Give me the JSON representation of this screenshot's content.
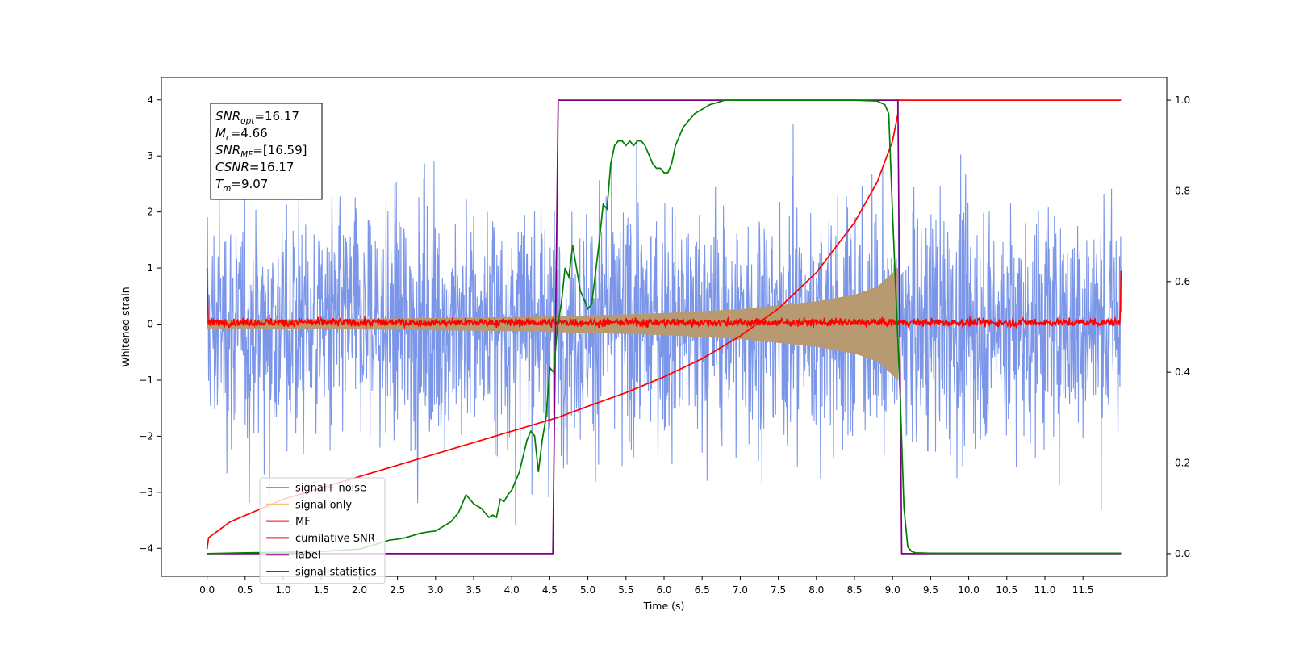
{
  "chart_data": {
    "type": "line",
    "xlabel": "Time (s)",
    "ylabel": "Whitened strain",
    "xlim": [
      -0.6,
      12.6
    ],
    "ylim": [
      -4.5,
      4.4
    ],
    "ylim_right": [
      -0.05,
      1.05
    ],
    "x_ticks": [
      "0.0",
      "0.5",
      "1.0",
      "1.5",
      "2.0",
      "2.5",
      "3.0",
      "3.5",
      "4.0",
      "4.5",
      "5.0",
      "5.5",
      "6.0",
      "6.5",
      "7.0",
      "7.5",
      "8.0",
      "8.5",
      "9.0",
      "9.5",
      "10.0",
      "10.5",
      "11.0",
      "11.5"
    ],
    "y_ticks": [
      "4",
      "3",
      "2",
      "1",
      "0",
      "−1",
      "−2",
      "−3",
      "−4"
    ],
    "y_ticks_right": [
      "1.0",
      "0.8",
      "0.6",
      "0.4",
      "0.2",
      "0.0"
    ],
    "grid": false,
    "legend_position": "lower-left",
    "info_box": [
      {
        "main": "SNR",
        "sub": "opt",
        "value": "=16.17"
      },
      {
        "main": "M",
        "sub": "c",
        "value": "=4.66"
      },
      {
        "main": "SNR",
        "sub": "MF",
        "value": "=[16.59]"
      },
      {
        "main": "CSNR",
        "sub": "",
        "value": "=16.17"
      },
      {
        "main": "T",
        "sub": "m",
        "value": "=9.07"
      }
    ],
    "series": [
      {
        "name": "signal+ noise",
        "color": "#7b96e9",
        "axis": "left",
        "kind": "noise-band",
        "x_range": [
          0.0,
          12.0
        ],
        "approx_sigma": 1.05,
        "approx_extremes": [
          -4.0,
          4.0
        ]
      },
      {
        "name": "signal only",
        "color": "#b89a72",
        "axis": "left",
        "kind": "chirp-envelope",
        "x_range": [
          0.0,
          9.07
        ],
        "envelope": {
          "x": [
            0.0,
            2.0,
            4.0,
            5.0,
            6.0,
            7.0,
            8.0,
            8.5,
            8.8,
            9.0,
            9.07
          ],
          "y": [
            0.07,
            0.09,
            0.12,
            0.15,
            0.19,
            0.26,
            0.4,
            0.52,
            0.66,
            0.9,
            1.0
          ]
        }
      },
      {
        "name": "MF",
        "color": "#ff0000",
        "axis": "left",
        "kind": "noisy-baseline",
        "x_range": [
          0.0,
          12.0
        ],
        "approx_level": 0.03,
        "edge_values": [
          1.0,
          0.95
        ]
      },
      {
        "name": "cumilative SNR",
        "color": "#ff0000",
        "axis": "right",
        "x": [
          0.0,
          0.02,
          0.3,
          1.0,
          2.0,
          3.0,
          4.0,
          4.6,
          5.0,
          5.5,
          6.0,
          6.5,
          7.0,
          7.5,
          8.0,
          8.5,
          8.8,
          9.0,
          9.07,
          9.07,
          12.0
        ],
        "y": [
          0.01,
          0.035,
          0.07,
          0.12,
          0.17,
          0.22,
          0.27,
          0.3,
          0.325,
          0.355,
          0.39,
          0.43,
          0.48,
          0.54,
          0.62,
          0.73,
          0.82,
          0.91,
          0.97,
          1.0,
          1.0
        ]
      },
      {
        "name": "label",
        "color": "#800080",
        "axis": "right",
        "x": [
          0.0,
          4.54,
          4.61,
          9.07,
          9.12,
          12.0
        ],
        "y": [
          0.0,
          0.0,
          1.0,
          1.0,
          0.0,
          0.0
        ]
      },
      {
        "name": "signal statistics",
        "color": "#008000",
        "axis": "right",
        "x": [
          0.0,
          0.5,
          1.0,
          1.5,
          2.0,
          2.2,
          2.3,
          2.4,
          2.5,
          2.6,
          2.7,
          2.8,
          2.9,
          3.0,
          3.1,
          3.2,
          3.3,
          3.4,
          3.45,
          3.5,
          3.6,
          3.7,
          3.75,
          3.8,
          3.85,
          3.9,
          3.95,
          4.0,
          4.1,
          4.2,
          4.25,
          4.3,
          4.35,
          4.4,
          4.45,
          4.5,
          4.55,
          4.6,
          4.65,
          4.7,
          4.75,
          4.8,
          4.85,
          4.9,
          5.0,
          5.05,
          5.1,
          5.15,
          5.2,
          5.25,
          5.3,
          5.35,
          5.4,
          5.45,
          5.5,
          5.55,
          5.6,
          5.65,
          5.7,
          5.75,
          5.8,
          5.85,
          5.9,
          5.95,
          6.0,
          6.05,
          6.1,
          6.15,
          6.2,
          6.25,
          6.3,
          6.35,
          6.4,
          6.5,
          6.6,
          6.7,
          6.8,
          6.9,
          7.0,
          7.5,
          8.0,
          8.5,
          8.8,
          8.9,
          8.95,
          9.0,
          9.05,
          9.1,
          9.15,
          9.2,
          9.25,
          9.3,
          9.5,
          10.0,
          11.0,
          12.0
        ],
        "y": [
          0.0,
          0.002,
          0.003,
          0.005,
          0.01,
          0.02,
          0.025,
          0.03,
          0.032,
          0.035,
          0.04,
          0.045,
          0.048,
          0.05,
          0.06,
          0.07,
          0.09,
          0.13,
          0.12,
          0.11,
          0.1,
          0.08,
          0.085,
          0.08,
          0.12,
          0.115,
          0.13,
          0.14,
          0.18,
          0.25,
          0.27,
          0.26,
          0.18,
          0.25,
          0.3,
          0.41,
          0.4,
          0.5,
          0.55,
          0.63,
          0.61,
          0.68,
          0.63,
          0.58,
          0.54,
          0.55,
          0.62,
          0.69,
          0.77,
          0.76,
          0.86,
          0.9,
          0.91,
          0.91,
          0.9,
          0.91,
          0.9,
          0.91,
          0.91,
          0.9,
          0.88,
          0.86,
          0.85,
          0.85,
          0.84,
          0.84,
          0.86,
          0.9,
          0.92,
          0.94,
          0.95,
          0.96,
          0.97,
          0.98,
          0.99,
          0.995,
          1.0,
          1.0,
          1.0,
          1.0,
          1.0,
          1.0,
          0.998,
          0.99,
          0.97,
          0.75,
          0.55,
          0.35,
          0.1,
          0.015,
          0.005,
          0.002,
          0.001,
          0.001,
          0.001,
          0.001
        ]
      }
    ]
  }
}
